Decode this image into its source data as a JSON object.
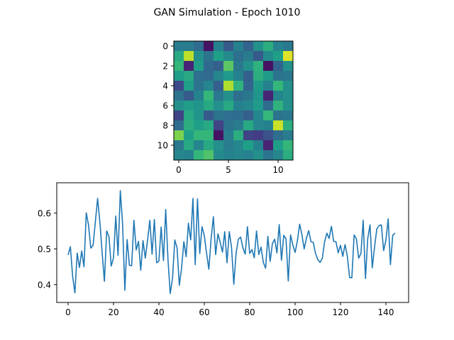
{
  "figure": {
    "title": "GAN Simulation - Epoch 1010"
  },
  "chart_data": [
    {
      "type": "heatmap",
      "colormap": "viridis",
      "rows": 12,
      "cols": 12,
      "xticks": [
        0,
        5,
        10
      ],
      "yticks": [
        0,
        2,
        4,
        6,
        8,
        10
      ],
      "value_range": [
        0,
        1
      ],
      "values": [
        [
          0.42,
          0.42,
          0.35,
          0.05,
          0.44,
          0.28,
          0.44,
          0.32,
          0.5,
          0.62,
          0.45,
          0.4
        ],
        [
          0.6,
          0.9,
          0.5,
          0.38,
          0.56,
          0.48,
          0.36,
          0.42,
          0.28,
          0.48,
          0.56,
          0.95
        ],
        [
          0.66,
          0.1,
          0.55,
          0.34,
          0.3,
          0.74,
          0.4,
          0.5,
          0.64,
          0.05,
          0.32,
          0.5
        ],
        [
          0.55,
          0.6,
          0.36,
          0.34,
          0.46,
          0.54,
          0.44,
          0.3,
          0.62,
          0.54,
          0.38,
          0.4
        ],
        [
          0.22,
          0.56,
          0.38,
          0.46,
          0.3,
          0.88,
          0.64,
          0.32,
          0.54,
          0.44,
          0.66,
          0.5
        ],
        [
          0.38,
          0.28,
          0.44,
          0.66,
          0.4,
          0.5,
          0.36,
          0.4,
          0.52,
          0.1,
          0.46,
          0.5
        ],
        [
          0.5,
          0.55,
          0.52,
          0.6,
          0.5,
          0.6,
          0.44,
          0.46,
          0.54,
          0.35,
          0.64,
          0.5
        ],
        [
          0.2,
          0.6,
          0.52,
          0.28,
          0.38,
          0.36,
          0.36,
          0.3,
          0.46,
          0.66,
          0.38,
          0.4
        ],
        [
          0.35,
          0.62,
          0.56,
          0.6,
          0.2,
          0.38,
          0.42,
          0.6,
          0.46,
          0.44,
          0.92,
          0.62
        ],
        [
          0.8,
          0.56,
          0.66,
          0.66,
          0.05,
          0.42,
          0.62,
          0.2,
          0.18,
          0.25,
          0.36,
          0.42
        ],
        [
          0.4,
          0.6,
          0.46,
          0.6,
          0.5,
          0.42,
          0.46,
          0.56,
          0.44,
          0.1,
          0.56,
          0.66
        ],
        [
          0.46,
          0.44,
          0.66,
          0.72,
          0.48,
          0.44,
          0.46,
          0.44,
          0.5,
          0.38,
          0.46,
          0.62
        ]
      ]
    },
    {
      "type": "line",
      "xlim": [
        -5,
        150
      ],
      "ylim": [
        0.35,
        0.685
      ],
      "xticks": [
        0,
        20,
        40,
        60,
        80,
        100,
        120,
        140
      ],
      "yticks": [
        0.4,
        0.5,
        0.6
      ],
      "ytick_labels": [
        "0.4",
        "0.5",
        "0.6"
      ],
      "series": [
        {
          "color": "#1f77b4",
          "values": [
            0.483,
            0.506,
            0.423,
            0.377,
            0.488,
            0.448,
            0.494,
            0.45,
            0.601,
            0.566,
            0.502,
            0.51,
            0.575,
            0.641,
            0.575,
            0.489,
            0.409,
            0.55,
            0.534,
            0.452,
            0.475,
            0.592,
            0.482,
            0.663,
            0.57,
            0.384,
            0.526,
            0.454,
            0.453,
            0.58,
            0.497,
            0.521,
            0.44,
            0.523,
            0.474,
            0.524,
            0.58,
            0.485,
            0.582,
            0.461,
            0.466,
            0.561,
            0.467,
            0.61,
            0.47,
            0.375,
            0.418,
            0.525,
            0.503,
            0.398,
            0.447,
            0.52,
            0.478,
            0.572,
            0.525,
            0.641,
            0.456,
            0.64,
            0.487,
            0.562,
            0.537,
            0.488,
            0.443,
            0.528,
            0.59,
            0.484,
            0.542,
            0.518,
            0.491,
            0.548,
            0.461,
            0.548,
            0.504,
            0.401,
            0.488,
            0.527,
            0.533,
            0.503,
            0.485,
            0.562,
            0.487,
            0.498,
            0.475,
            0.55,
            0.484,
            0.505,
            0.462,
            0.446,
            0.535,
            0.465,
            0.515,
            0.527,
            0.489,
            0.568,
            0.468,
            0.538,
            0.528,
            0.41,
            0.539,
            0.511,
            0.49,
            0.522,
            0.569,
            0.54,
            0.5,
            0.53,
            0.551,
            0.52,
            0.518,
            0.487,
            0.47,
            0.462,
            0.474,
            0.52,
            0.544,
            0.529,
            0.563,
            0.521,
            0.52,
            0.489,
            0.51,
            0.479,
            0.512,
            0.48,
            0.42,
            0.419,
            0.539,
            0.528,
            0.474,
            0.487,
            0.58,
            0.417,
            0.529,
            0.567,
            0.447,
            0.505,
            0.556,
            0.565,
            0.567,
            0.495,
            0.524,
            0.584,
            0.456,
            0.538,
            0.544
          ]
        }
      ]
    }
  ]
}
